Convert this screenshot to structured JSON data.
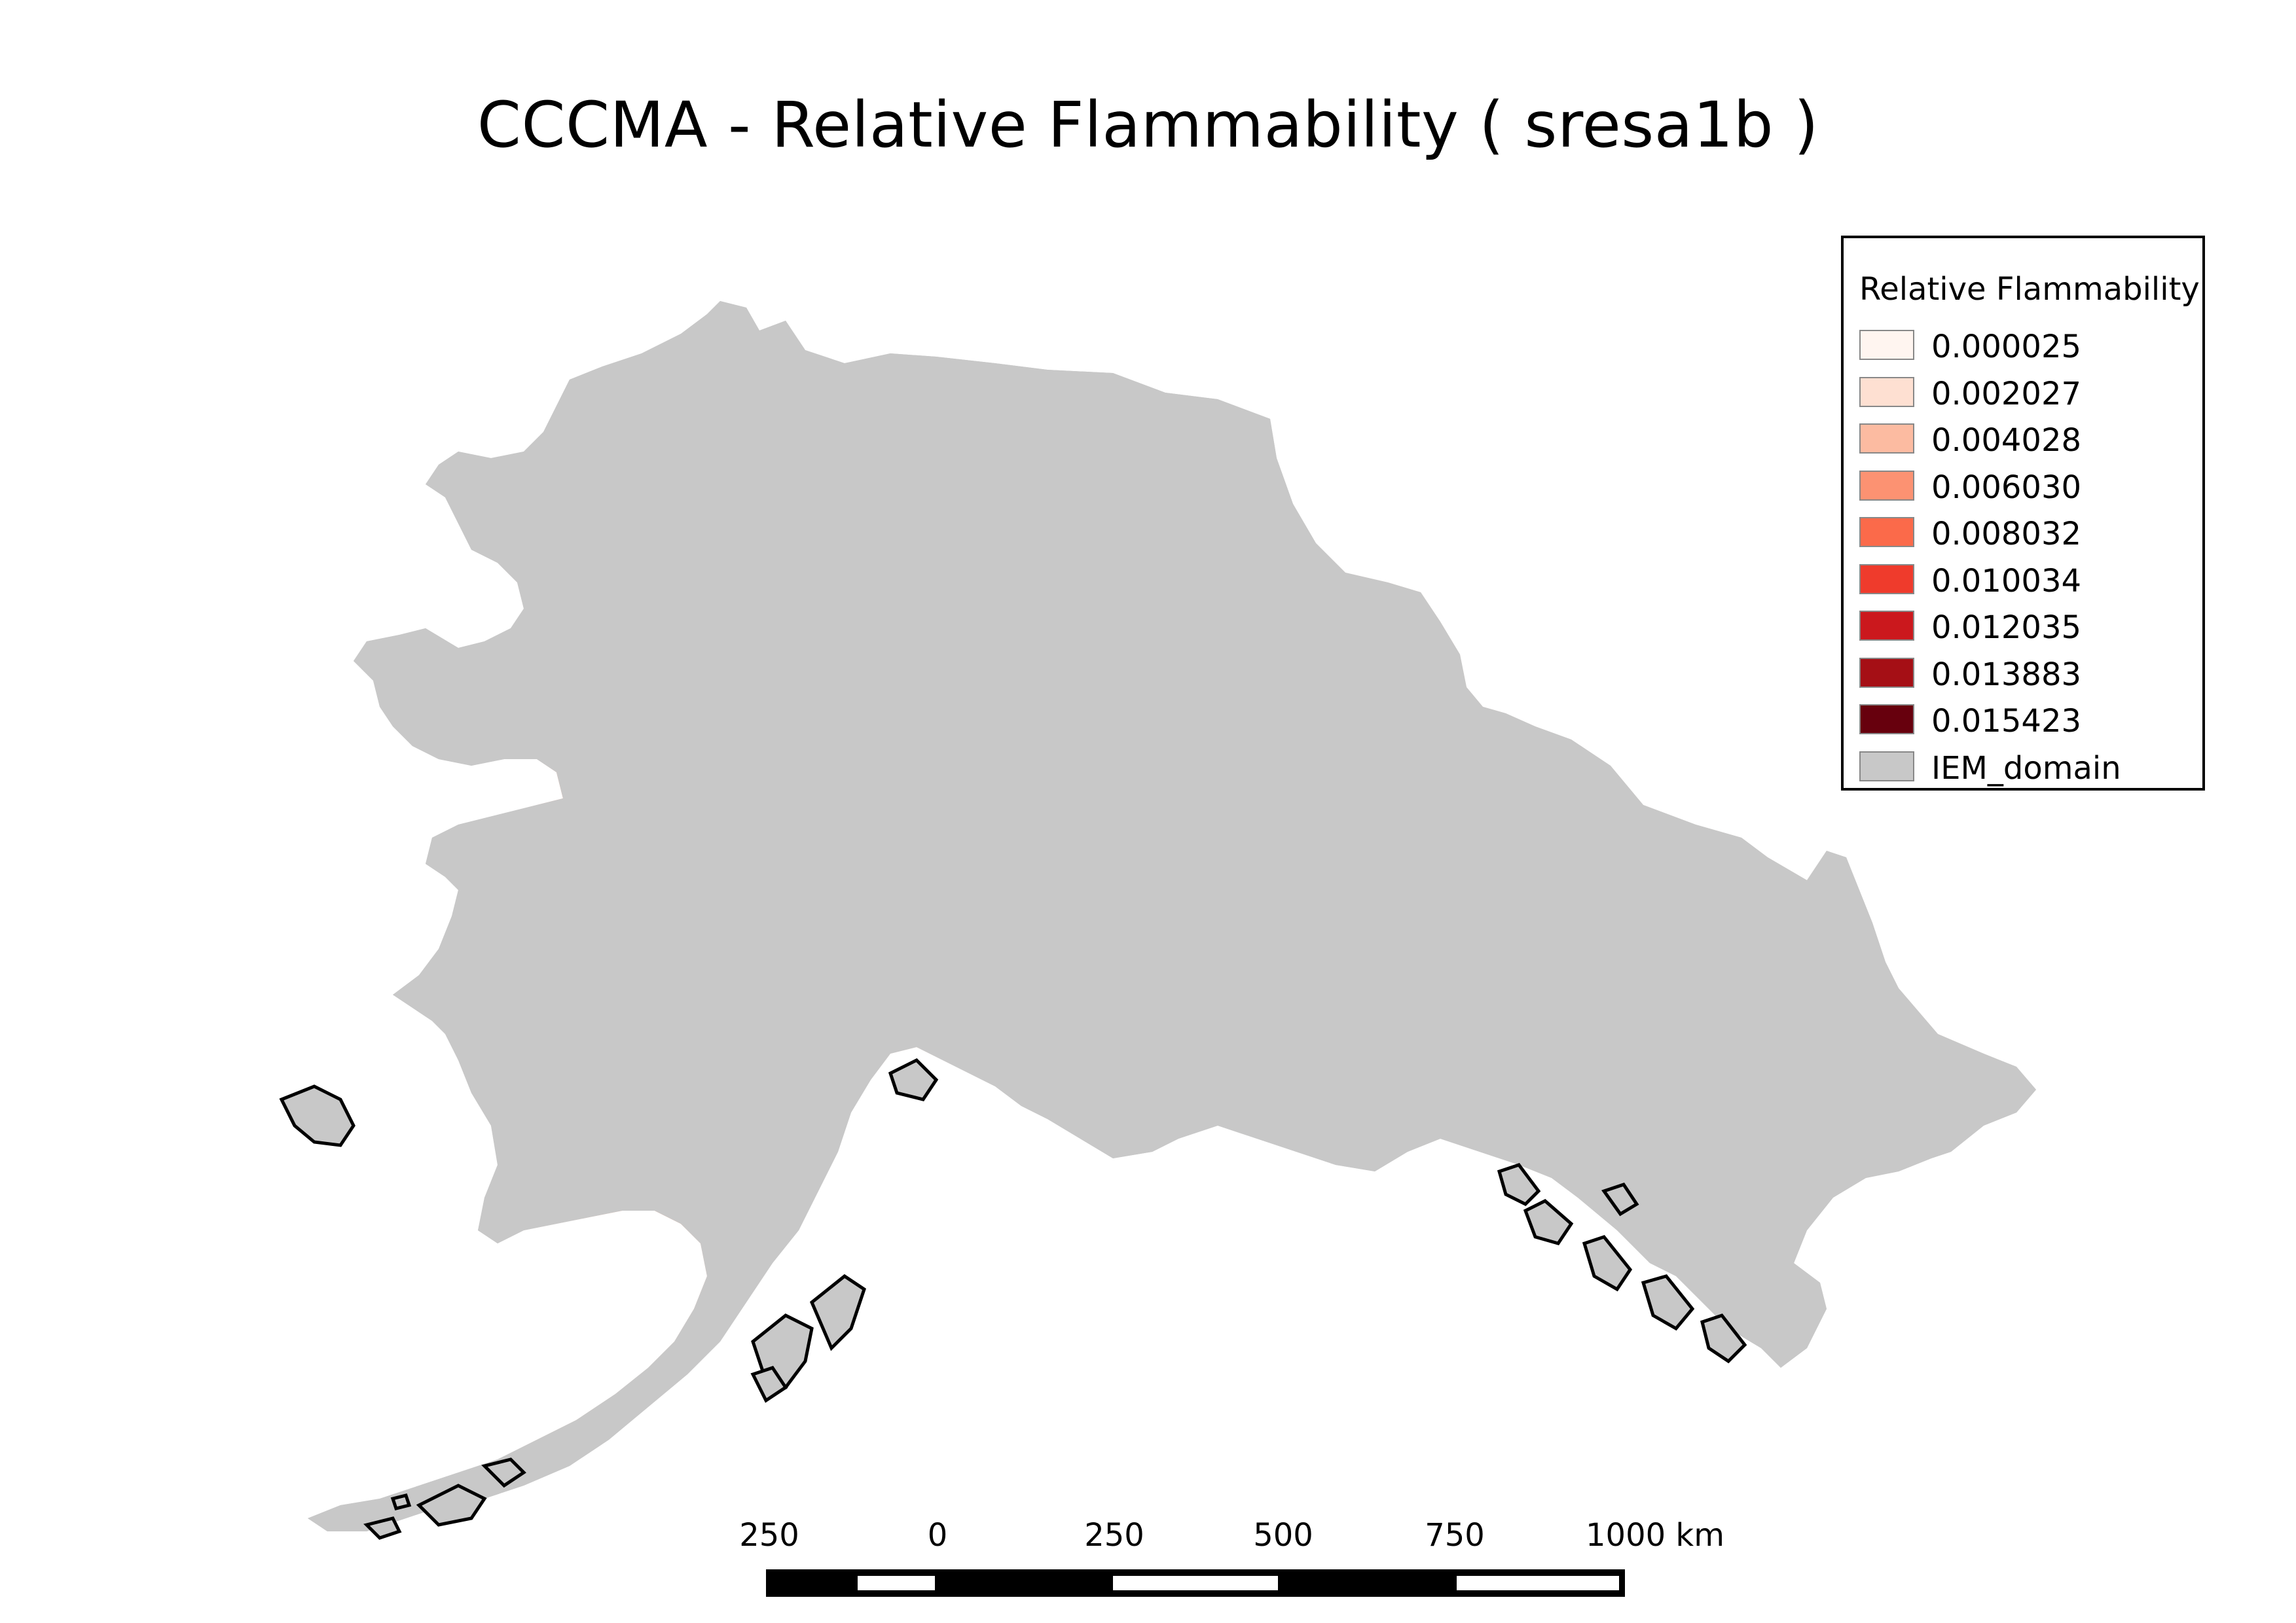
{
  "title": "CCCMA - Relative Flammability ( sresa1b )",
  "legend": {
    "title": "Relative Flammability",
    "items": [
      {
        "label": "0.000025",
        "color": "#fff5f0"
      },
      {
        "label": "0.002027",
        "color": "#fee0d2"
      },
      {
        "label": "0.004028",
        "color": "#fcbba1"
      },
      {
        "label": "0.006030",
        "color": "#fc9272"
      },
      {
        "label": "0.008032",
        "color": "#fb6a4a"
      },
      {
        "label": "0.010034",
        "color": "#ef3b2c"
      },
      {
        "label": "0.012035",
        "color": "#cb181d"
      },
      {
        "label": "0.013883",
        "color": "#a50f15"
      },
      {
        "label": "0.015423",
        "color": "#67000d"
      },
      {
        "label": "IEM_domain",
        "color": "#c8c8c8"
      }
    ]
  },
  "scale_bar": {
    "labels": [
      "250",
      "0",
      "250",
      "500",
      "750",
      "1000 km"
    ]
  },
  "colors": {
    "domain": "#c8c8c8",
    "outline": "#000000"
  }
}
